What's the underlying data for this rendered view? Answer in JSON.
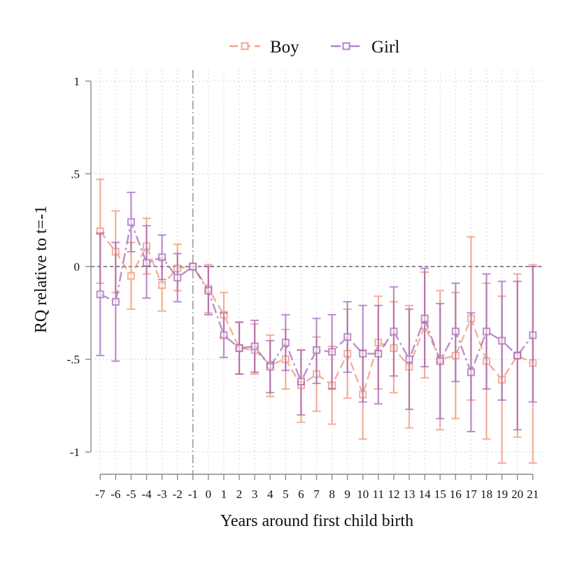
{
  "chart_data": {
    "type": "line",
    "title": "",
    "xlabel": "Years around first child birth",
    "ylabel": "RQ relative to t=-1",
    "x": [
      -7,
      -6,
      -5,
      -4,
      -3,
      -2,
      -1,
      0,
      1,
      2,
      3,
      4,
      5,
      6,
      7,
      8,
      9,
      10,
      11,
      12,
      13,
      14,
      15,
      16,
      17,
      18,
      19,
      20,
      21
    ],
    "x_tick_labels": [
      "-7",
      "-6",
      "-5",
      "-4",
      "-3",
      "-2",
      "-1",
      "0",
      "1",
      "2",
      "3",
      "4",
      "5",
      "6",
      "7",
      "8",
      "9",
      "10",
      "11",
      "12",
      "13",
      "14",
      "15",
      "16",
      "17",
      "18",
      "19",
      "20",
      "21"
    ],
    "xlim": [
      -7.6,
      21.6
    ],
    "ylim": [
      -1.12,
      1.06
    ],
    "y_ticks": [
      1,
      0.5,
      0,
      -0.5,
      -1
    ],
    "y_tick_labels": [
      "1",
      ".5",
      "0",
      "-.5",
      "-1"
    ],
    "reference_line_x": -1,
    "reference_line_y": 0,
    "grid": true,
    "legend_position": "top",
    "series": [
      {
        "name": "Boy",
        "color": "#f08a65",
        "marker": "hollow-square",
        "values": [
          0.19,
          0.08,
          -0.05,
          0.11,
          -0.1,
          -0.01,
          0,
          -0.12,
          -0.26,
          -0.44,
          -0.45,
          -0.53,
          -0.5,
          -0.64,
          -0.58,
          -0.64,
          -0.47,
          -0.69,
          -0.41,
          -0.44,
          -0.54,
          -0.32,
          -0.5,
          -0.48,
          -0.28,
          -0.51,
          -0.61,
          -0.48,
          -0.52
        ],
        "ci_low": [
          -0.09,
          -0.14,
          -0.23,
          -0.04,
          -0.24,
          -0.13,
          0,
          -0.25,
          -0.38,
          -0.58,
          -0.58,
          -0.7,
          -0.66,
          -0.84,
          -0.78,
          -0.85,
          -0.71,
          -0.93,
          -0.66,
          -0.68,
          -0.87,
          -0.6,
          -0.88,
          -0.82,
          -0.72,
          -0.93,
          -1.06,
          -0.92,
          -1.06
        ],
        "ci_high": [
          0.47,
          0.3,
          0.13,
          0.26,
          0.04,
          0.12,
          0,
          0.01,
          -0.14,
          -0.3,
          -0.31,
          -0.37,
          -0.34,
          -0.45,
          -0.38,
          -0.43,
          -0.23,
          -0.45,
          -0.16,
          -0.19,
          -0.21,
          -0.03,
          -0.13,
          -0.14,
          0.16,
          -0.09,
          -0.16,
          -0.04,
          0.01
        ]
      },
      {
        "name": "Girl",
        "color": "#9b59b6",
        "marker": "hollow-square",
        "values": [
          -0.15,
          -0.19,
          0.24,
          0.02,
          0.05,
          -0.06,
          0,
          -0.13,
          -0.37,
          -0.44,
          -0.43,
          -0.54,
          -0.41,
          -0.62,
          -0.45,
          -0.46,
          -0.38,
          -0.47,
          -0.47,
          -0.35,
          -0.5,
          -0.28,
          -0.51,
          -0.35,
          -0.57,
          -0.35,
          -0.4,
          -0.48,
          -0.37
        ],
        "ci_low": [
          -0.48,
          -0.51,
          0.08,
          -0.17,
          -0.07,
          -0.19,
          0,
          -0.26,
          -0.49,
          -0.58,
          -0.57,
          -0.68,
          -0.56,
          -0.8,
          -0.63,
          -0.66,
          -0.57,
          -0.73,
          -0.74,
          -0.59,
          -0.77,
          -0.54,
          -0.82,
          -0.62,
          -0.89,
          -0.66,
          -0.72,
          -0.88,
          -0.73
        ],
        "ci_high": [
          0.18,
          0.13,
          0.4,
          0.22,
          0.17,
          0.07,
          0,
          0,
          -0.25,
          -0.3,
          -0.29,
          -0.4,
          -0.26,
          -0.45,
          -0.28,
          -0.26,
          -0.19,
          -0.21,
          -0.21,
          -0.11,
          -0.23,
          -0.01,
          -0.2,
          -0.09,
          -0.25,
          -0.04,
          -0.08,
          -0.08,
          0
        ]
      }
    ]
  }
}
